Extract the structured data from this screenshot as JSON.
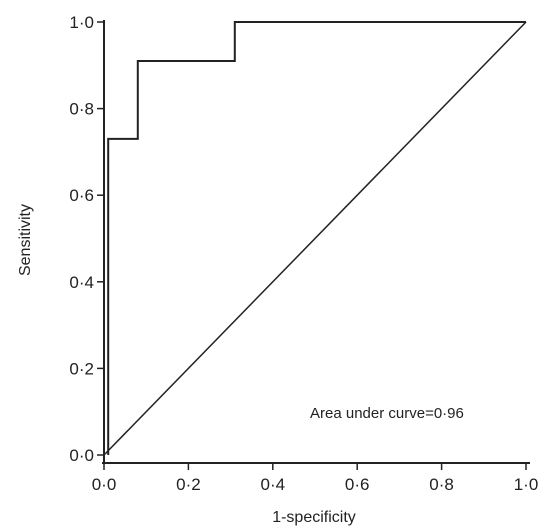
{
  "chart_data": {
    "type": "line",
    "title": "",
    "xlabel": "1-specificity",
    "ylabel": "Sensitivity",
    "xlim": [
      0,
      1
    ],
    "ylim": [
      0,
      1
    ],
    "xticks": [
      "0·0",
      "0·2",
      "0·4",
      "0·6",
      "0·8",
      "1·0"
    ],
    "yticks": [
      "0·0",
      "0·2",
      "0·4",
      "0·6",
      "0·8",
      "1·0"
    ],
    "grid": false,
    "annotation": "Area under curve=0·96",
    "series": [
      {
        "x": [
          0.01,
          0.01,
          0.08,
          0.08,
          0.31,
          0.31,
          1.0
        ],
        "y": [
          0.0,
          0.73,
          0.73,
          0.91,
          0.91,
          1.0,
          1.0
        ]
      },
      {
        "x": [
          0.0,
          1.0
        ],
        "y": [
          0.0,
          1.0
        ]
      }
    ]
  }
}
